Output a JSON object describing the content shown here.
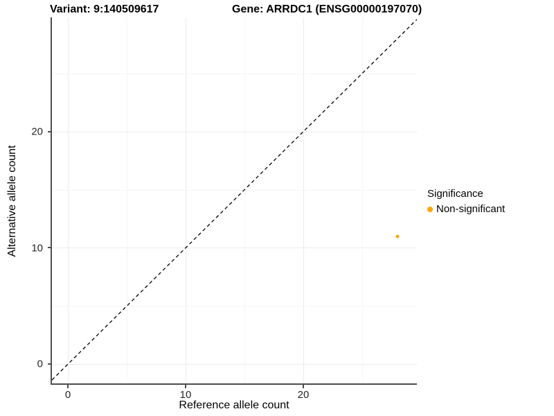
{
  "titles": {
    "variant": "Variant: 9:140509617",
    "gene": "Gene: ARRDC1 (ENSG00000197070)"
  },
  "axes": {
    "x_label": "Reference allele count",
    "y_label": "Alternative allele count",
    "x_tick_labels": [
      "0",
      "10",
      "20"
    ],
    "y_tick_labels": [
      "0",
      "10",
      "20"
    ]
  },
  "legend": {
    "title": "Significance",
    "items": [
      {
        "label": "Non-significant",
        "color": "#FFA500"
      }
    ]
  },
  "colors": {
    "point": "#FFA500",
    "axis_line": "#4d4d4d",
    "identity_line": "#000000",
    "grid_major": "#ebebeb",
    "grid_minor": "#f6f6f6"
  },
  "chart_data": {
    "type": "scatter",
    "title": "Variant: 9:140509617 | Gene: ARRDC1 (ENSG00000197070)",
    "xlabel": "Reference allele count",
    "ylabel": "Alternative allele count",
    "xlim": [
      -1.4,
      29.6
    ],
    "ylim": [
      -1.5,
      29.9
    ],
    "x_ticks": [
      0,
      10,
      20
    ],
    "y_ticks": [
      0,
      10,
      20
    ],
    "grid": "major and minor gridlines every 5 units, light gray",
    "legend_position": "right",
    "series": [
      {
        "name": "Non-significant",
        "color": "#FFA500",
        "points": [
          {
            "x": 28,
            "y": 11
          }
        ]
      }
    ],
    "reference_line": {
      "slope": 1,
      "intercept": 0,
      "style": "dashed",
      "color": "#000000"
    }
  }
}
